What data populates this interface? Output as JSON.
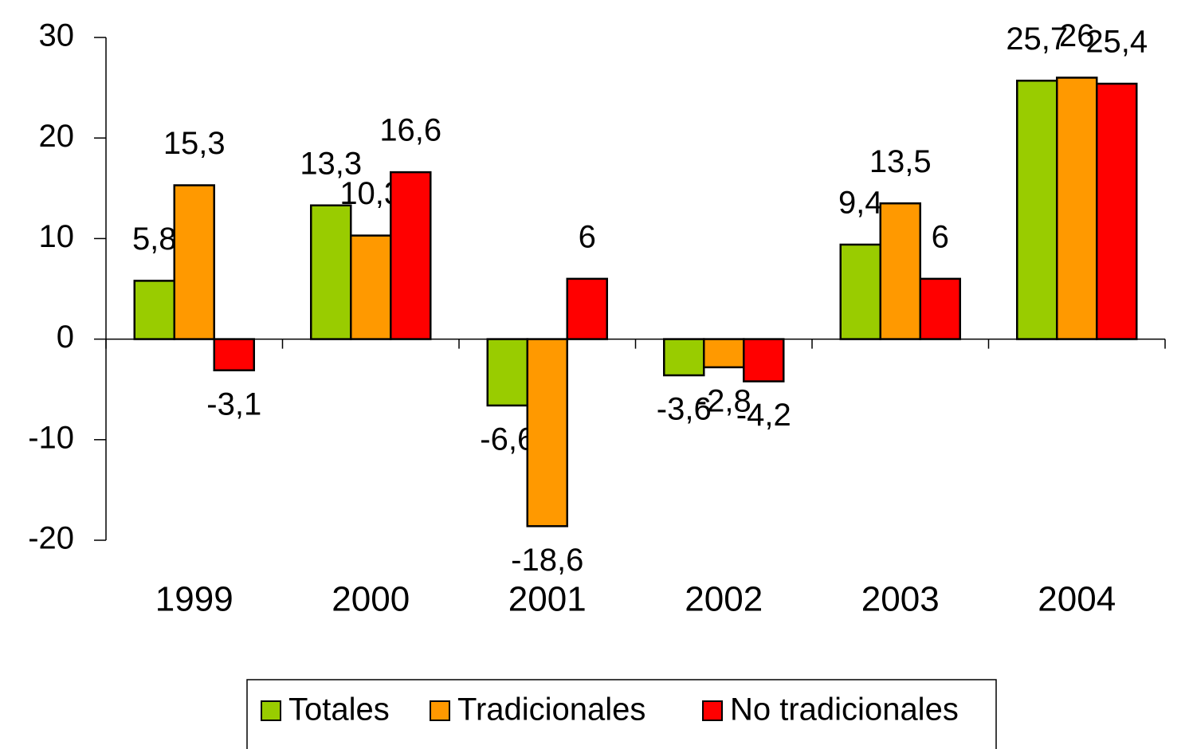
{
  "chart_data": {
    "type": "bar",
    "categories": [
      "1999",
      "2000",
      "2001",
      "2002",
      "2003",
      "2004"
    ],
    "series": [
      {
        "name": "Totales",
        "color": "#99cc00",
        "values": [
          5.8,
          13.3,
          -6.6,
          -3.6,
          9.4,
          25.7
        ],
        "value_labels": [
          "5,8",
          "13,3",
          "-6,6",
          "-3,6",
          "9,4",
          "25,7"
        ]
      },
      {
        "name": "Tradicionales",
        "color": "#ff9900",
        "values": [
          15.3,
          10.3,
          -18.6,
          -2.8,
          13.5,
          26
        ],
        "value_labels": [
          "15,3",
          "10,3",
          "-18,6",
          "-2,8",
          "13,5",
          "26"
        ]
      },
      {
        "name": "No tradicionales",
        "color": "#ff0000",
        "values": [
          -3.1,
          16.6,
          6,
          -4.2,
          6,
          25.4
        ],
        "value_labels": [
          "-3,1",
          "16,6",
          "6",
          "-4,2",
          "6",
          "25,4"
        ]
      }
    ],
    "ylim": [
      -20,
      30
    ],
    "yticks": [
      -20,
      -10,
      0,
      10,
      20,
      30
    ],
    "legend": "bottom"
  }
}
